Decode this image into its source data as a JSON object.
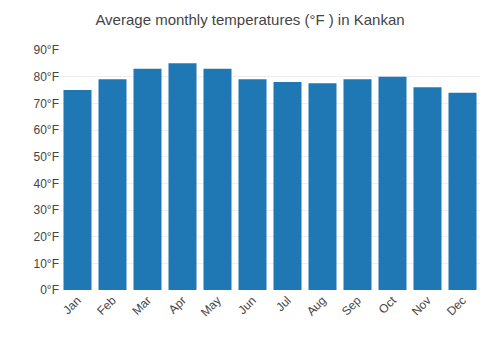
{
  "chart_data": {
    "type": "bar",
    "title": "Average monthly temperatures (°F ) in Kankan",
    "categories": [
      "Jan",
      "Feb",
      "Mar",
      "Apr",
      "May",
      "Jun",
      "Jul",
      "Aug",
      "Sep",
      "Oct",
      "Nov",
      "Dec"
    ],
    "values": [
      75,
      79,
      83,
      85,
      83,
      79,
      78,
      77.5,
      79,
      80,
      76,
      74
    ],
    "ylim": [
      0,
      90
    ],
    "yticks": [
      {
        "value": 0,
        "label": "0°F"
      },
      {
        "value": 10,
        "label": "10°F"
      },
      {
        "value": 20,
        "label": "20°F"
      },
      {
        "value": 30,
        "label": "30°F"
      },
      {
        "value": 40,
        "label": "40°F"
      },
      {
        "value": 50,
        "label": "50°F"
      },
      {
        "value": 60,
        "label": "60°F"
      },
      {
        "value": 70,
        "label": "70°F"
      },
      {
        "value": 80,
        "label": "80°F"
      },
      {
        "value": 90,
        "label": "90°F"
      }
    ],
    "grid": true
  }
}
